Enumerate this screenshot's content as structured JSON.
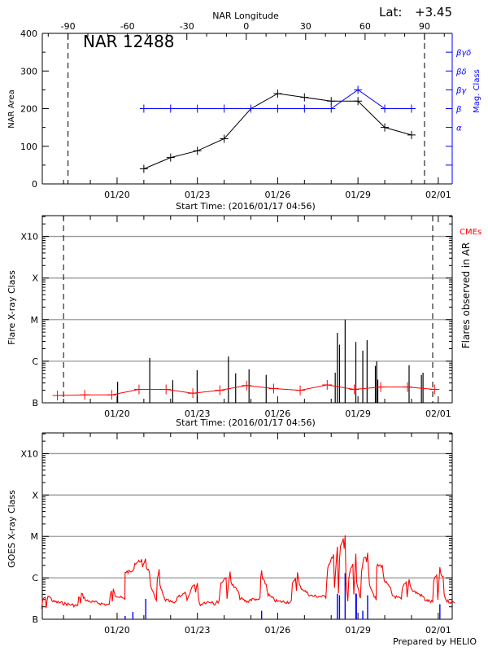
{
  "header": {
    "lat_label": "Lat:",
    "lat_value": "+3.45",
    "longitude_title": "NAR Longitude"
  },
  "footer": {
    "credit": "Prepared by HELIO"
  },
  "colors": {
    "axis": "#000000",
    "mag": "#0000ff",
    "cme": "#ff0000",
    "goes": "#ff0000",
    "goes_events": "#0000ff",
    "grid": "#999999"
  },
  "chart_data": [
    {
      "type": "line",
      "title": "NAR 12488",
      "ylabel": "NAR Area",
      "y2label": "Mag. Class",
      "xlabel": "Start Time: (2016/01/17 04:56)",
      "x_range": [
        "2016-01-17T04:56",
        "2016-02-01T12:30"
      ],
      "x_tick_labels": [
        "01/20",
        "01/23",
        "01/26",
        "01/29",
        "02/01"
      ],
      "ylim": [
        0,
        400
      ],
      "y_ticks": [
        0,
        100,
        200,
        300,
        400
      ],
      "top_axis": {
        "label": "NAR Longitude",
        "range": [
          -103,
          104
        ],
        "ticks": [
          -90,
          -60,
          -30,
          0,
          30,
          60,
          90
        ],
        "limb_markers": [
          -90,
          90
        ]
      },
      "mag_classes": [
        "",
        "",
        "",
        "α",
        "β",
        "βγ",
        "βδ",
        "βγδ"
      ],
      "series": [
        {
          "name": "NAR Area",
          "t": [
            "2016-01-21T00:00",
            "2016-01-22T00:00",
            "2016-01-23T00:00",
            "2016-01-24T00:00",
            "2016-01-25T00:00",
            "2016-01-26T00:00",
            "2016-01-27T00:00",
            "2016-01-28T00:00",
            "2016-01-29T00:00",
            "2016-01-30T00:00",
            "2016-01-31T00:00"
          ],
          "values": [
            40,
            70,
            88,
            120,
            200,
            240,
            230,
            220,
            220,
            150,
            130
          ]
        },
        {
          "name": "Mag. Class",
          "t": [
            "2016-01-21T00:00",
            "2016-01-22T00:00",
            "2016-01-23T00:00",
            "2016-01-24T00:00",
            "2016-01-25T00:00",
            "2016-01-26T00:00",
            "2016-01-27T00:00",
            "2016-01-28T00:00",
            "2016-01-29T00:00",
            "2016-01-30T00:00",
            "2016-01-31T00:00"
          ],
          "values": [
            "β",
            "β",
            "β",
            "β",
            "β",
            "β",
            "β",
            "β",
            "βγ",
            "β",
            "β"
          ]
        }
      ]
    },
    {
      "type": "bar",
      "ylabel": "Flare X-ray Class",
      "y2label": "Flares observed in AR",
      "cme_label": "CMEs",
      "xlabel": "Start Time: (2016/01/17 04:56)",
      "x_range": [
        "2016-01-17T04:56",
        "2016-02-01T12:30"
      ],
      "x_tick_labels": [
        "01/20",
        "01/23",
        "01/26",
        "01/29",
        "02/01"
      ],
      "y_scale": "log",
      "y_tick_labels": [
        "B",
        "C",
        "M",
        "X",
        "X10"
      ],
      "grid": true,
      "flares": [
        {
          "t": "2016-01-20T00:29",
          "class": "B3.2"
        },
        {
          "t": "2016-01-21T05:17",
          "class": "C1.2"
        },
        {
          "t": "2016-01-22T01:55",
          "class": "B3.5"
        },
        {
          "t": "2016-01-22T23:46",
          "class": "B6.1"
        },
        {
          "t": "2016-01-24T03:50",
          "class": "C1.3"
        },
        {
          "t": "2016-01-24T10:19",
          "class": "B5.1"
        },
        {
          "t": "2016-01-24T22:19",
          "class": "B6.4"
        },
        {
          "t": "2016-01-25T13:41",
          "class": "B4.7"
        },
        {
          "t": "2016-01-28T03:36",
          "class": "B5.3"
        },
        {
          "t": "2016-01-28T05:31",
          "class": "C4.8"
        },
        {
          "t": "2016-01-28T07:26",
          "class": "C2.5"
        },
        {
          "t": "2016-01-28T12:29",
          "class": "M1.0"
        },
        {
          "t": "2016-01-28T22:05",
          "class": "C2.9"
        },
        {
          "t": "2016-01-29T04:19",
          "class": "C1.8"
        },
        {
          "t": "2016-01-29T08:10",
          "class": "C3.2"
        },
        {
          "t": "2016-01-29T15:36",
          "class": "B7.7"
        },
        {
          "t": "2016-01-29T16:48",
          "class": "C1.0"
        },
        {
          "t": "2016-01-29T17:46",
          "class": "B3.6"
        },
        {
          "t": "2016-01-30T21:50",
          "class": "B8.0"
        },
        {
          "t": "2016-01-31T08:53",
          "class": "B4.7"
        },
        {
          "t": "2016-01-31T10:19",
          "class": "B5.3"
        }
      ],
      "cme_series": [
        {
          "t": "2016-01-17T18:29",
          "class": "B1.5"
        },
        {
          "t": "2016-01-18T18:58",
          "class": "B1.55"
        },
        {
          "t": "2016-01-19T19:12",
          "class": "B1.55"
        },
        {
          "t": "2016-01-20T19:41",
          "class": "B2.1"
        },
        {
          "t": "2016-01-21T19:55",
          "class": "B2.1"
        },
        {
          "t": "2016-01-22T19:55",
          "class": "B1.7"
        },
        {
          "t": "2016-01-23T20:10",
          "class": "B2.0"
        },
        {
          "t": "2016-01-24T20:10",
          "class": "B2.6"
        },
        {
          "t": "2016-01-25T20:24",
          "class": "B2.2"
        },
        {
          "t": "2016-01-26T20:10",
          "class": "B2.0"
        },
        {
          "t": "2016-01-27T20:24",
          "class": "B2.7"
        },
        {
          "t": "2016-01-28T20:38",
          "class": "B2.1"
        },
        {
          "t": "2016-01-29T20:24",
          "class": "B2.4"
        },
        {
          "t": "2016-01-30T20:24",
          "class": "B2.4"
        },
        {
          "t": "2016-01-31T20:38",
          "class": "B2.1"
        }
      ],
      "limb_markers": [
        "2016-01-18T00:00",
        "2016-01-31T19:00"
      ]
    },
    {
      "type": "line",
      "ylabel": "GOES X-ray Class",
      "x_range": [
        "2016-01-17T04:56",
        "2016-02-01T12:30"
      ],
      "x_tick_labels": [
        "01/20",
        "01/23",
        "01/26",
        "01/29",
        "02/01"
      ],
      "y_scale": "log",
      "y_tick_labels": [
        "B",
        "C",
        "M",
        "X",
        "X10"
      ],
      "grid": true,
      "goes_flux": [
        {
          "t": "2016-01-17T04:20",
          "class": "B1.8"
        },
        {
          "t": "2016-01-17T10:05",
          "class": "B3.9"
        },
        {
          "t": "2016-01-18T12:45",
          "class": "B2.1"
        },
        {
          "t": "2016-01-18T16:05",
          "class": "B4.1"
        },
        {
          "t": "2016-01-19T17:00",
          "class": "B2.2"
        },
        {
          "t": "2016-01-19T20:38",
          "class": "B5.7"
        },
        {
          "t": "2016-01-20T07:00",
          "class": "B3.0"
        },
        {
          "t": "2016-01-20T07:12",
          "class": "C1.4"
        },
        {
          "t": "2016-01-20T14:10",
          "class": "C1.4"
        },
        {
          "t": "2016-01-21T01:26",
          "class": "C3.0"
        },
        {
          "t": "2016-01-21T05:02",
          "class": "C1.4"
        },
        {
          "t": "2016-01-21T11:15",
          "class": "B3.0"
        },
        {
          "t": "2016-01-21T13:41",
          "class": "C1.5"
        },
        {
          "t": "2016-01-21T16:48",
          "class": "B4.1"
        },
        {
          "t": "2016-01-22T04:05",
          "class": "B2.4"
        },
        {
          "t": "2016-01-22T18:14",
          "class": "B4.7"
        },
        {
          "t": "2016-01-23T00:00",
          "class": "B7.4"
        },
        {
          "t": "2016-01-23T02:38",
          "class": "B2.2"
        },
        {
          "t": "2016-01-23T19:26",
          "class": "B2.8"
        },
        {
          "t": "2016-01-24T05:17",
          "class": "C1.4"
        },
        {
          "t": "2016-01-24T12:29",
          "class": "B4.7"
        },
        {
          "t": "2016-01-24T20:53",
          "class": "B2.6"
        },
        {
          "t": "2016-01-25T08:10",
          "class": "B3.2"
        },
        {
          "t": "2016-01-25T09:36",
          "class": "C1.5"
        },
        {
          "t": "2016-01-25T13:41",
          "class": "B6.9"
        },
        {
          "t": "2016-01-25T22:05",
          "class": "B2.8"
        },
        {
          "t": "2016-01-26T12:14",
          "class": "B2.6"
        },
        {
          "t": "2016-01-26T17:46",
          "class": "C1.3"
        },
        {
          "t": "2016-01-27T05:02",
          "class": "B3.8"
        },
        {
          "t": "2016-01-27T19:12",
          "class": "B3.5"
        },
        {
          "t": "2016-01-28T05:31",
          "class": "C5.5"
        },
        {
          "t": "2016-01-28T06:29",
          "class": "B4.1"
        },
        {
          "t": "2016-01-28T07:26",
          "class": "C2.9"
        },
        {
          "t": "2016-01-28T12:29",
          "class": "M1.0"
        },
        {
          "t": "2016-01-28T14:53",
          "class": "B2.6"
        },
        {
          "t": "2016-01-28T22:05",
          "class": "C3.5"
        },
        {
          "t": "2016-01-29T02:10",
          "class": "B3.0"
        },
        {
          "t": "2016-01-29T04:19",
          "class": "C2.1"
        },
        {
          "t": "2016-01-29T08:38",
          "class": "C3.8"
        },
        {
          "t": "2016-01-29T16:19",
          "class": "B2.8"
        },
        {
          "t": "2016-01-29T16:48",
          "class": "C1.9"
        },
        {
          "t": "2016-01-29T21:50",
          "class": "C2.0"
        },
        {
          "t": "2016-01-30T05:02",
          "class": "B5.5"
        },
        {
          "t": "2016-01-30T14:53",
          "class": "B3.0"
        },
        {
          "t": "2016-01-30T21:50",
          "class": "B9.3"
        },
        {
          "t": "2016-01-31T10:34",
          "class": "B3.5"
        },
        {
          "t": "2016-01-31T18:58",
          "class": "B2.6"
        },
        {
          "t": "2016-02-01T01:26",
          "class": "C1.8"
        },
        {
          "t": "2016-02-01T04:19",
          "class": "C1.0"
        },
        {
          "t": "2016-02-01T06:14",
          "class": "B3.2"
        },
        {
          "t": "2016-02-01T14:38",
          "class": "B2.5"
        }
      ],
      "goes_events": [
        {
          "t": "2016-01-20T07:12",
          "class": "B1.2"
        },
        {
          "t": "2016-01-20T14:10",
          "class": "B1.5"
        },
        {
          "t": "2016-01-21T01:41",
          "class": "B3.1"
        },
        {
          "t": "2016-01-25T09:36",
          "class": "B1.6"
        },
        {
          "t": "2016-01-28T05:31",
          "class": "B4.1"
        },
        {
          "t": "2016-01-28T07:26",
          "class": "B3.8"
        },
        {
          "t": "2016-01-28T12:29",
          "class": "C1.3"
        },
        {
          "t": "2016-01-28T22:05",
          "class": "B4.2"
        },
        {
          "t": "2016-01-28T22:34",
          "class": "B4.1"
        },
        {
          "t": "2016-01-29T04:19",
          "class": "B1.6"
        },
        {
          "t": "2016-01-29T08:38",
          "class": "B3.8"
        },
        {
          "t": "2016-02-01T01:26",
          "class": "B2.3"
        }
      ]
    }
  ]
}
